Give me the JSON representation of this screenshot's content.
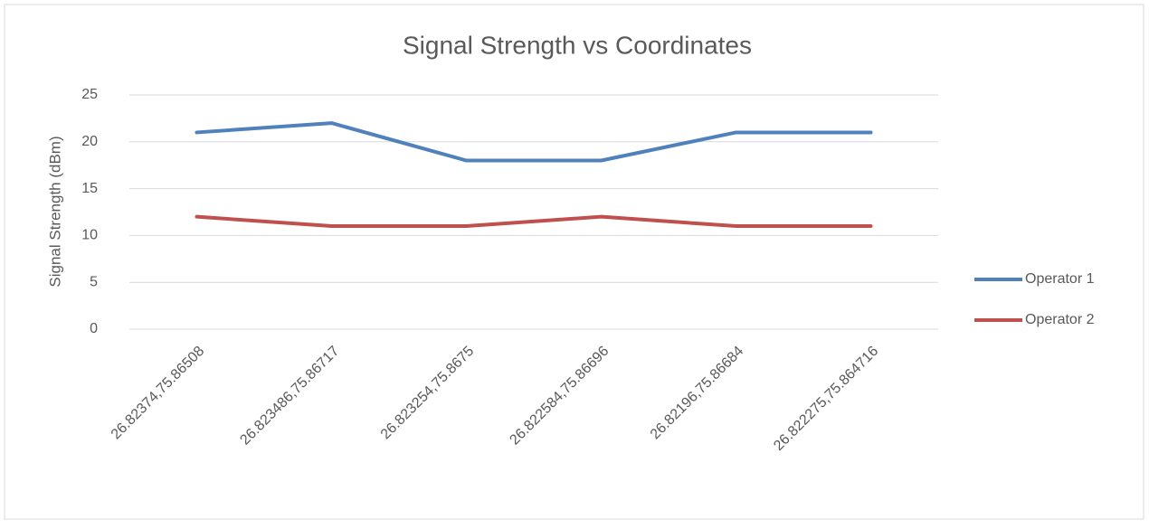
{
  "chart_data": {
    "type": "line",
    "title": "Signal Strength vs Coordinates",
    "y_label": "Signal Strength (dBm)",
    "categories": [
      "26.82374,75.86508",
      "26.823486,75.86717",
      "26.823254,75.8675",
      "26.822584,75.86696",
      "26.82196,75.86684",
      "26.822275,75.864716"
    ],
    "series": [
      {
        "name": "Operator 1",
        "color": "#4f81bd",
        "values": [
          21,
          22,
          18,
          18,
          21,
          21
        ]
      },
      {
        "name": "Operator 2",
        "color": "#c0504d",
        "values": [
          12,
          11,
          11,
          12,
          11,
          11
        ]
      }
    ],
    "ylim": [
      0,
      25
    ],
    "yticks": [
      0,
      5,
      10,
      15,
      20,
      25
    ],
    "grid": true,
    "legend": "right"
  }
}
